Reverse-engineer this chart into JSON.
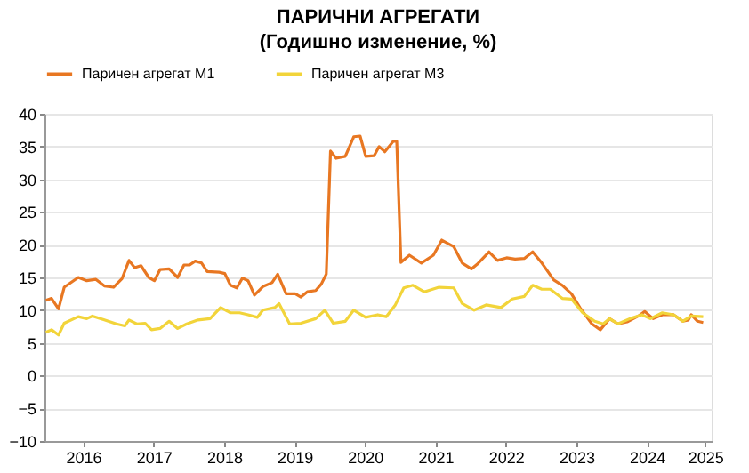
{
  "chart_data": {
    "type": "line",
    "title": "ПАРИЧНИ АГРЕГАТИ",
    "subtitle": "(Годишно изменение, %)",
    "xlim": [
      2015.95,
      2025.42
    ],
    "xticks": [
      {
        "value": 2016.5,
        "label": "2016"
      },
      {
        "value": 2017.5,
        "label": "2017"
      },
      {
        "value": 2018.5,
        "label": "2018"
      },
      {
        "value": 2019.5,
        "label": "2019"
      },
      {
        "value": 2020.5,
        "label": "2020"
      },
      {
        "value": 2021.5,
        "label": "2021"
      },
      {
        "value": 2022.5,
        "label": "2022"
      },
      {
        "value": 2023.5,
        "label": "2023"
      },
      {
        "value": 2024.5,
        "label": "2024"
      },
      {
        "value": 2025.33,
        "label": "2025"
      }
    ],
    "ylim": [
      -10,
      40
    ],
    "yticks": [
      -10,
      -5,
      0,
      5,
      10,
      15,
      20,
      25,
      30,
      35,
      40
    ],
    "grid": "y",
    "legend": "top",
    "line_style": "solid",
    "series": [
      {
        "name": "Паричен агрегат М1",
        "color": "#e87722",
        "x": [
          2015.97,
          2016.05,
          2016.15,
          2016.23,
          2016.43,
          2016.55,
          2016.68,
          2016.8,
          2016.93,
          2017.05,
          2017.15,
          2017.23,
          2017.32,
          2017.43,
          2017.51,
          2017.59,
          2017.72,
          2017.84,
          2017.93,
          2018.01,
          2018.09,
          2018.18,
          2018.26,
          2018.43,
          2018.51,
          2018.59,
          2018.68,
          2018.76,
          2018.84,
          2018.93,
          2019.05,
          2019.18,
          2019.26,
          2019.38,
          2019.51,
          2019.59,
          2019.68,
          2019.8,
          2019.88,
          2019.95,
          2020.01,
          2020.09,
          2020.22,
          2020.34,
          2020.43,
          2020.51,
          2020.63,
          2020.7,
          2020.78,
          2020.9,
          2020.95,
          2021.01,
          2021.13,
          2021.3,
          2021.47,
          2021.59,
          2021.76,
          2021.88,
          2022.01,
          2022.09,
          2022.26,
          2022.38,
          2022.51,
          2022.63,
          2022.76,
          2022.88,
          2023.01,
          2023.18,
          2023.3,
          2023.43,
          2023.55,
          2023.72,
          2023.84,
          2023.97,
          2024.09,
          2024.22,
          2024.38,
          2024.47,
          2024.59,
          2024.72,
          2024.88,
          2025.01,
          2025.09,
          2025.13,
          2025.22,
          2025.3
        ],
        "values": [
          11.5,
          11.8,
          10.2,
          13.5,
          15,
          14.5,
          14.7,
          13.7,
          13.5,
          14.8,
          17.6,
          16.5,
          16.8,
          15,
          14.5,
          16.2,
          16.3,
          15,
          16.9,
          16.9,
          17.5,
          17.2,
          15.9,
          15.8,
          15.6,
          13.8,
          13.4,
          14.9,
          14.5,
          12.3,
          13.6,
          14.2,
          15.5,
          12.5,
          12.5,
          12,
          12.8,
          13,
          14,
          15.5,
          34.3,
          33.2,
          33.5,
          36.5,
          36.6,
          33.5,
          33.6,
          35,
          34.2,
          35.8,
          35.8,
          17.3,
          18.4,
          17.2,
          18.4,
          20.7,
          19.7,
          17.2,
          16.3,
          17,
          18.9,
          17.6,
          18,
          17.8,
          17.9,
          18.9,
          17.2,
          14.6,
          13.8,
          12.5,
          10.4,
          7.9,
          7,
          8.7,
          7.9,
          8.2,
          9.1,
          9.8,
          8.7,
          9.3,
          9.3,
          8.3,
          8.5,
          9.3,
          8.3,
          8.1
        ]
      },
      {
        "name": "Паричен агрегат М3",
        "color": "#f2d43a",
        "x": [
          2015.97,
          2016.05,
          2016.15,
          2016.23,
          2016.43,
          2016.55,
          2016.63,
          2016.8,
          2016.97,
          2017.09,
          2017.15,
          2017.26,
          2017.38,
          2017.47,
          2017.59,
          2017.72,
          2017.84,
          2017.97,
          2018.13,
          2018.3,
          2018.45,
          2018.59,
          2018.72,
          2018.84,
          2018.97,
          2019.05,
          2019.22,
          2019.28,
          2019.43,
          2019.59,
          2019.8,
          2019.93,
          2020.05,
          2020.22,
          2020.34,
          2020.51,
          2020.68,
          2020.8,
          2020.93,
          2021.05,
          2021.18,
          2021.34,
          2021.55,
          2021.76,
          2021.88,
          2022.05,
          2022.22,
          2022.43,
          2022.59,
          2022.76,
          2022.88,
          2023.01,
          2023.13,
          2023.3,
          2023.43,
          2023.59,
          2023.76,
          2023.88,
          2023.97,
          2024.09,
          2024.26,
          2024.43,
          2024.55,
          2024.72,
          2024.88,
          2025.01,
          2025.13,
          2025.3
        ],
        "values": [
          6.6,
          7,
          6.2,
          8,
          9,
          8.7,
          9.1,
          8.5,
          7.9,
          7.6,
          8.5,
          7.9,
          8,
          7,
          7.2,
          8.3,
          7.2,
          7.9,
          8.5,
          8.7,
          10.4,
          9.6,
          9.6,
          9.3,
          8.9,
          10,
          10.4,
          11,
          7.9,
          8,
          8.7,
          10,
          8,
          8.3,
          10,
          8.9,
          9.3,
          9,
          10.8,
          13.4,
          13.8,
          12.8,
          13.5,
          13.4,
          11,
          10,
          10.8,
          10.4,
          11.7,
          12.1,
          13.8,
          13.2,
          13.2,
          11.8,
          11.7,
          9.6,
          8.3,
          7.9,
          8.7,
          7.9,
          8.7,
          9.3,
          8.7,
          9.6,
          9.3,
          8.3,
          9.1,
          9
        ]
      }
    ]
  }
}
